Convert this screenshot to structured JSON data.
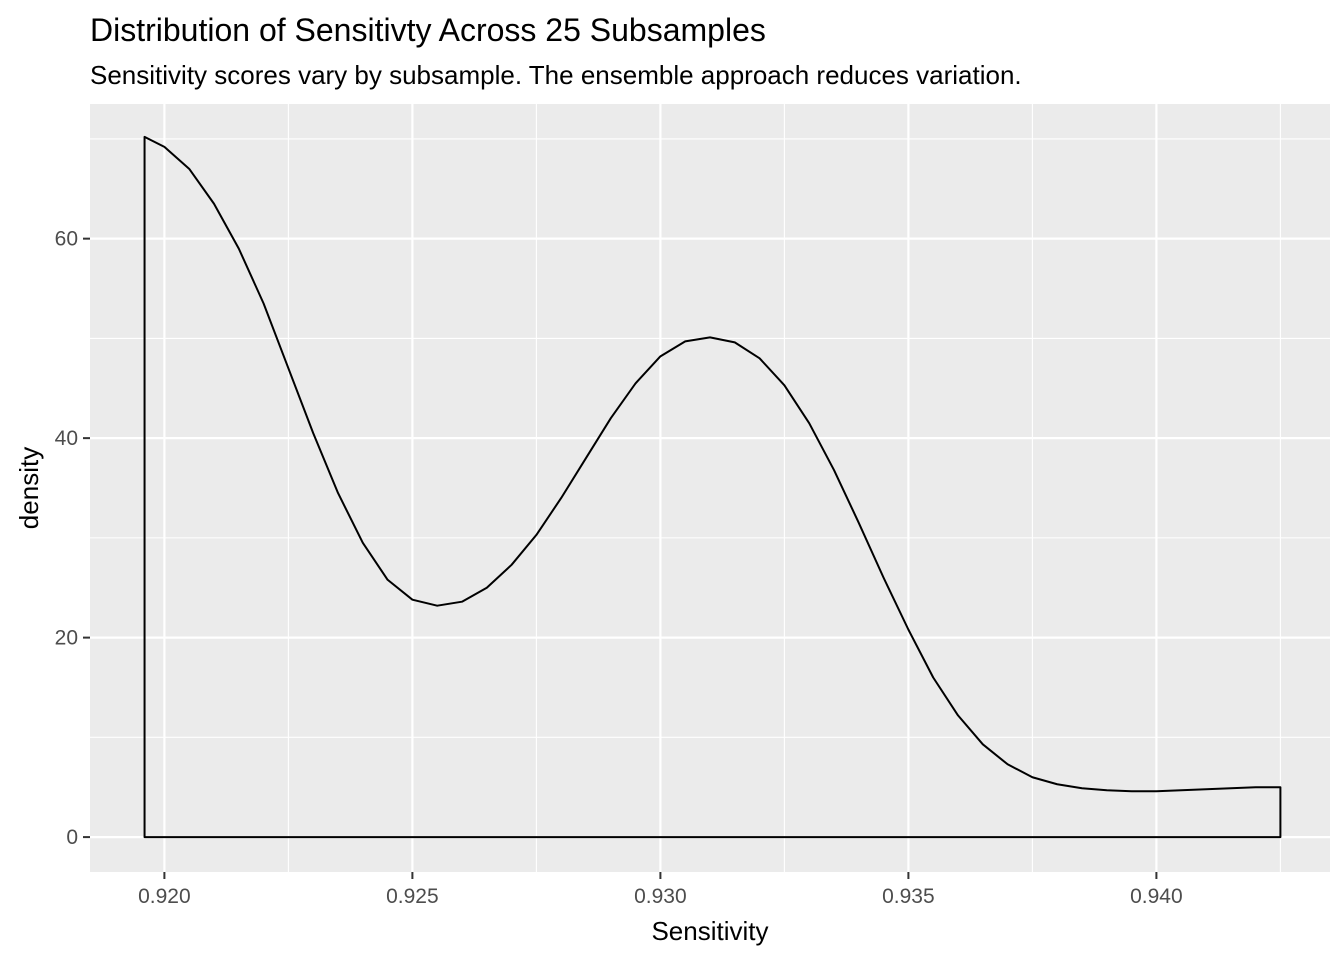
{
  "chart_data": {
    "type": "area",
    "title": "Distribution of Sensitivty Across 25 Subsamples",
    "subtitle": "Sensitivity scores vary by subsample. The ensemble approach reduces variation.",
    "xlabel": "Sensitivity",
    "ylabel": "density",
    "xlim": [
      0.9185,
      0.9435
    ],
    "ylim": [
      -3.5,
      73.5
    ],
    "x_ticks": [
      0.92,
      0.925,
      0.93,
      0.935,
      0.94
    ],
    "x_tick_labels": [
      "0.920",
      "0.925",
      "0.930",
      "0.935",
      "0.940"
    ],
    "y_ticks": [
      0,
      20,
      40,
      60
    ],
    "y_tick_labels": [
      "0",
      "20",
      "40",
      "60"
    ],
    "grid": true,
    "legend": "none",
    "series": [
      {
        "x": [
          0.9196,
          0.92,
          0.9205,
          0.921,
          0.9215,
          0.922,
          0.9225,
          0.923,
          0.9235,
          0.924,
          0.9245,
          0.925,
          0.9255,
          0.926,
          0.9265,
          0.927,
          0.9275,
          0.928,
          0.9285,
          0.929,
          0.9295,
          0.93,
          0.9305,
          0.931,
          0.9315,
          0.932,
          0.9325,
          0.933,
          0.9335,
          0.934,
          0.9345,
          0.935,
          0.9355,
          0.936,
          0.9365,
          0.937,
          0.9375,
          0.938,
          0.9385,
          0.939,
          0.9395,
          0.94,
          0.9405,
          0.941,
          0.9415,
          0.942,
          0.9425
        ],
        "y": [
          70.2,
          69.2,
          67.0,
          63.5,
          59.0,
          53.5,
          47.0,
          40.5,
          34.5,
          29.5,
          25.8,
          23.8,
          23.2,
          23.6,
          25.0,
          27.3,
          30.3,
          34.0,
          38.0,
          42.0,
          45.5,
          48.2,
          49.7,
          50.1,
          49.6,
          48.0,
          45.3,
          41.5,
          36.8,
          31.5,
          26.0,
          20.8,
          16.0,
          12.2,
          9.3,
          7.3,
          6.0,
          5.3,
          4.9,
          4.7,
          4.6,
          4.6,
          4.7,
          4.8,
          4.9,
          5.0,
          5.0
        ],
        "line_color": "#000000",
        "fill": "none"
      }
    ]
  }
}
